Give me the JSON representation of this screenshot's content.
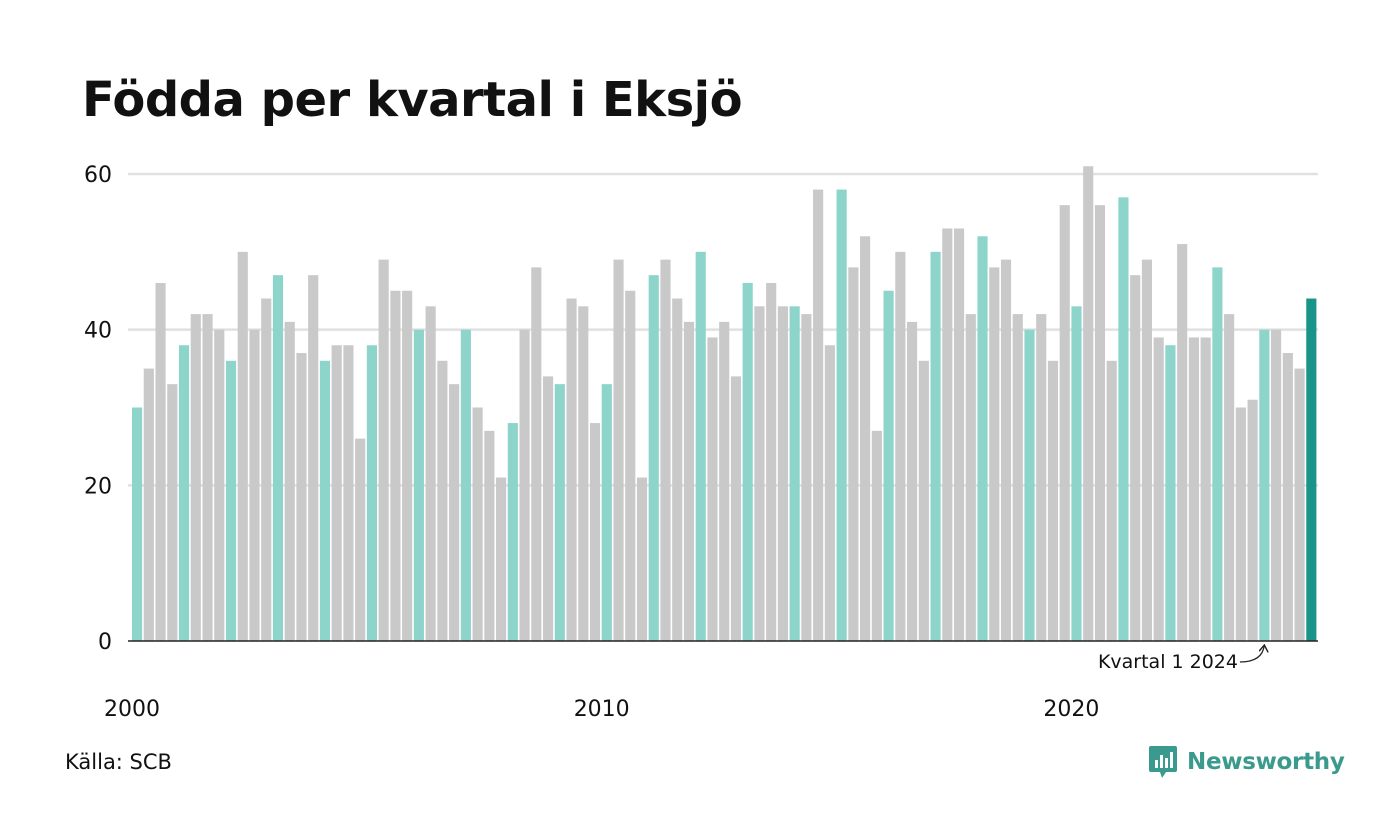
{
  "page": {
    "title": "Födda per kvartal i Eksjö",
    "source": "Källa: SCB",
    "brand": "Newsworthy"
  },
  "colors": {
    "background": "#ffffff",
    "bar_default": "#c9c9c9",
    "bar_q1": "#8dd4cb",
    "bar_latest": "#1a9488",
    "grid": "#e1e1e1",
    "baseline": "#222222",
    "brand": "#3a9a8d"
  },
  "chart_data": {
    "type": "bar",
    "title": "Födda per kvartal i Eksjö",
    "xlabel": "",
    "ylabel": "",
    "ylim": [
      0,
      60
    ],
    "yticks": [
      0,
      20,
      40,
      60
    ],
    "grid": true,
    "start": {
      "year": 2000,
      "quarter": 1
    },
    "x_tick_labels": [
      "2000",
      "2010",
      "2020"
    ],
    "highlight": "Kvartal 1 bars in teal; latest quarter in dark teal",
    "annotation": {
      "text": "Kvartal 1 2024",
      "target": "2024 Q1"
    },
    "values": [
      30,
      35,
      46,
      33,
      38,
      42,
      42,
      40,
      36,
      50,
      40,
      44,
      47,
      41,
      37,
      47,
      36,
      38,
      38,
      26,
      38,
      49,
      45,
      45,
      40,
      43,
      36,
      33,
      40,
      30,
      27,
      21,
      28,
      40,
      48,
      34,
      33,
      44,
      43,
      28,
      33,
      49,
      45,
      21,
      47,
      49,
      44,
      41,
      50,
      39,
      41,
      34,
      46,
      43,
      46,
      43,
      43,
      42,
      58,
      38,
      58,
      48,
      52,
      27,
      45,
      50,
      41,
      36,
      50,
      53,
      53,
      42,
      52,
      48,
      49,
      42,
      40,
      42,
      36,
      56,
      43,
      61,
      56,
      36,
      57,
      47,
      49,
      39,
      38,
      51,
      39,
      39,
      48,
      42,
      30,
      31,
      40,
      40,
      37,
      35,
      44
    ]
  }
}
